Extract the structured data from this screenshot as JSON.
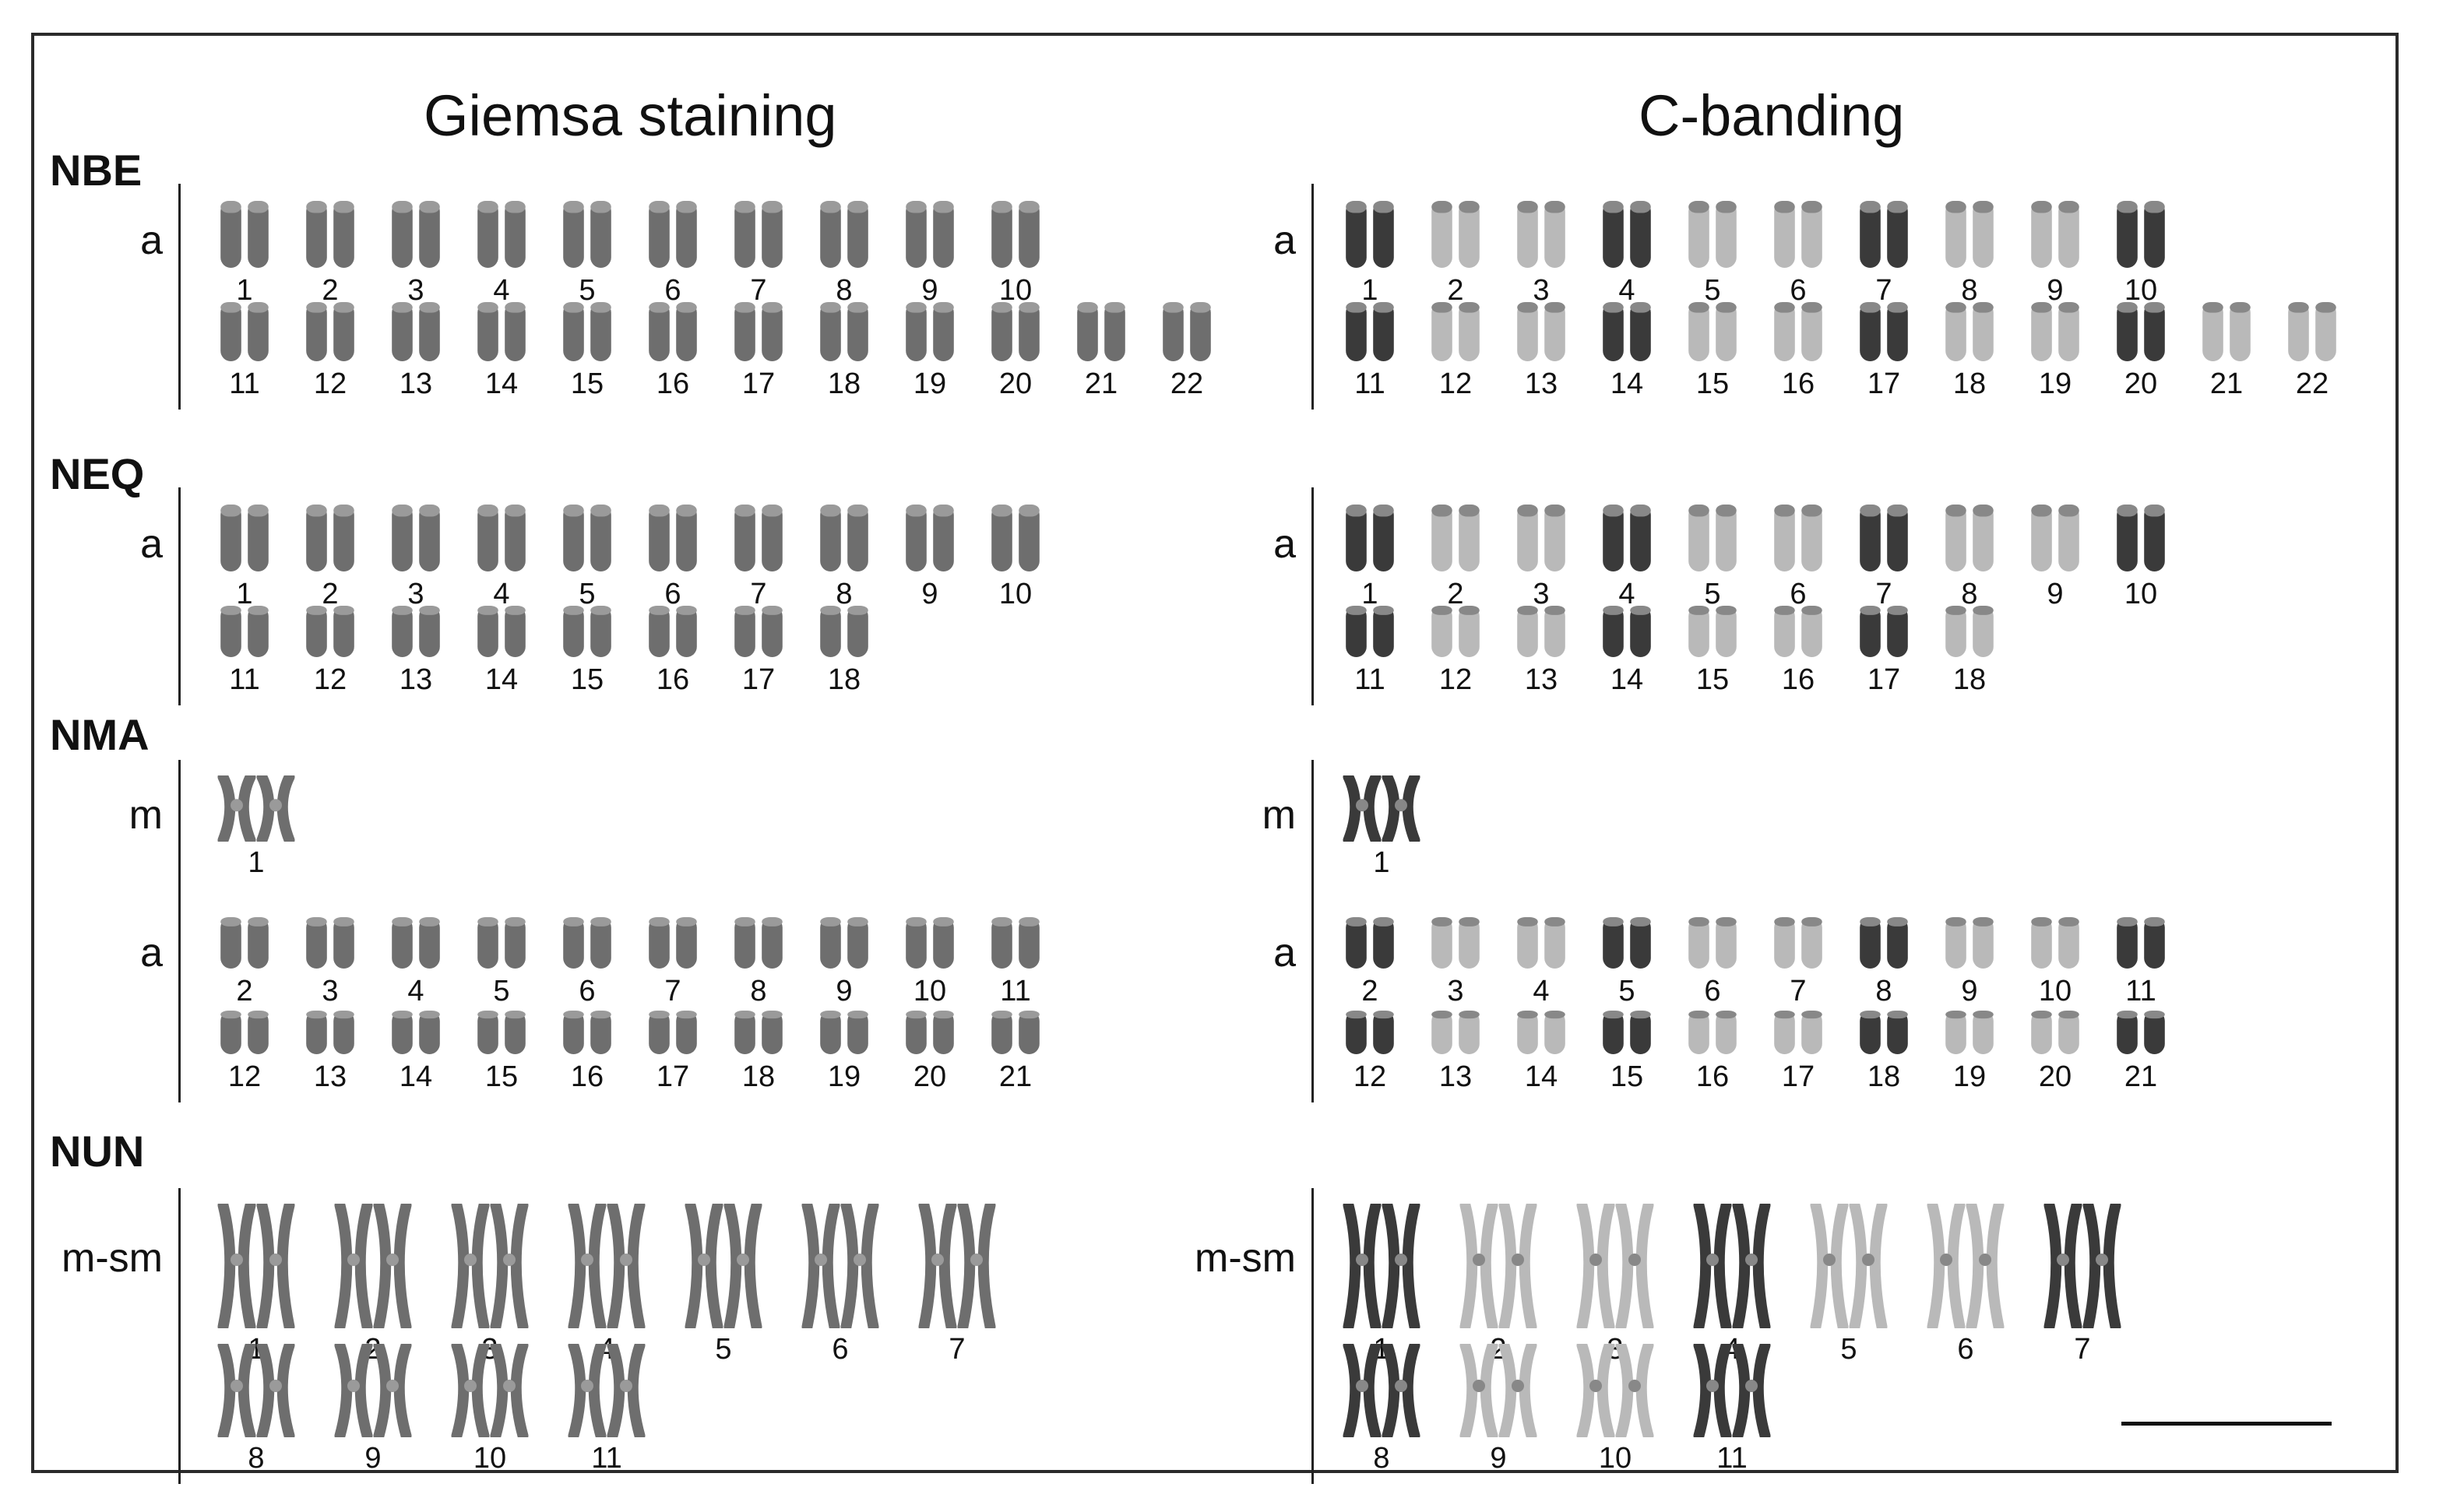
{
  "column_titles": {
    "left": "Giemsa staining",
    "right": "C-banding"
  },
  "species": [
    {
      "name": "NBE",
      "rows": [
        {
          "type": "a",
          "pairs": [
            "1",
            "2",
            "3",
            "4",
            "5",
            "6",
            "7",
            "8",
            "9",
            "10"
          ]
        },
        {
          "type": "",
          "pairs": [
            "11",
            "12",
            "13",
            "14",
            "15",
            "16",
            "17",
            "18",
            "19",
            "20",
            "21",
            "22"
          ]
        }
      ]
    },
    {
      "name": "NEQ",
      "rows": [
        {
          "type": "a",
          "pairs": [
            "1",
            "2",
            "3",
            "4",
            "5",
            "6",
            "7",
            "8",
            "9",
            "10"
          ]
        },
        {
          "type": "",
          "pairs": [
            "11",
            "12",
            "13",
            "14",
            "15",
            "16",
            "17",
            "18"
          ]
        }
      ]
    },
    {
      "name": "NMA",
      "rows": [
        {
          "type": "m",
          "pairs": [
            "1"
          ]
        },
        {
          "type": "a",
          "pairs": [
            "2",
            "3",
            "4",
            "5",
            "6",
            "7",
            "8",
            "9",
            "10",
            "11"
          ]
        },
        {
          "type": "",
          "pairs": [
            "12",
            "13",
            "14",
            "15",
            "16",
            "17",
            "18",
            "19",
            "20",
            "21"
          ]
        }
      ]
    },
    {
      "name": "NUN",
      "rows": [
        {
          "type": "m-sm",
          "pairs": [
            "1",
            "2",
            "3",
            "4",
            "5",
            "6",
            "7"
          ]
        },
        {
          "type": "",
          "pairs": [
            "8",
            "9",
            "10",
            "11"
          ]
        }
      ]
    }
  ],
  "colors": {
    "giemsa": "#6e6e6e",
    "cband_light": "#b9b9b9",
    "cband_dark": "#3a3a3a",
    "text": "#111111"
  }
}
